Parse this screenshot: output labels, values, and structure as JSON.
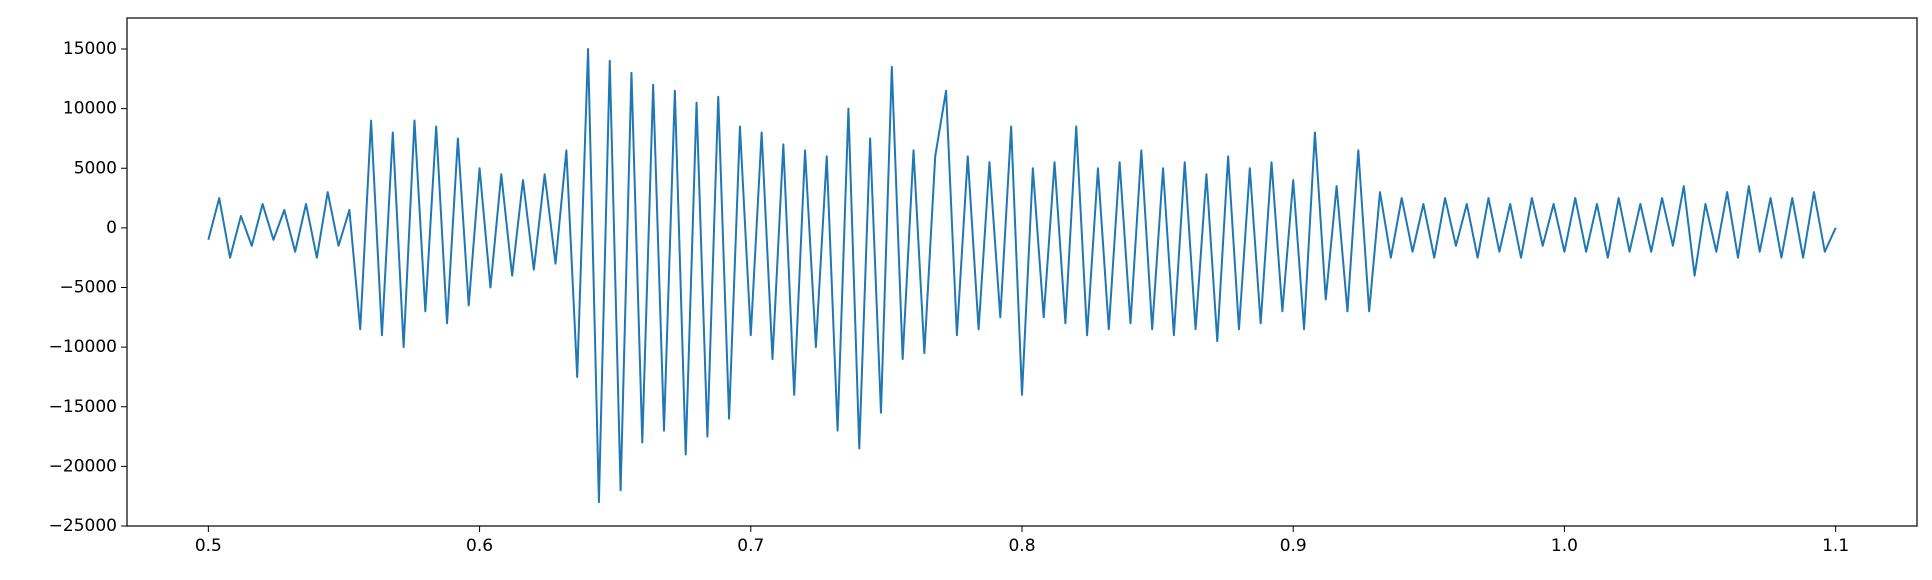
{
  "chart_data": {
    "type": "line",
    "x": [
      0.5,
      0.504,
      0.508,
      0.512,
      0.516,
      0.52,
      0.524,
      0.528,
      0.532,
      0.536,
      0.54,
      0.544,
      0.548,
      0.552,
      0.556,
      0.56,
      0.564,
      0.568,
      0.572,
      0.576,
      0.58,
      0.584,
      0.588,
      0.592,
      0.596,
      0.6,
      0.604,
      0.608,
      0.612,
      0.616,
      0.62,
      0.624,
      0.628,
      0.632,
      0.636,
      0.64,
      0.644,
      0.648,
      0.652,
      0.656,
      0.66,
      0.664,
      0.668,
      0.672,
      0.676,
      0.68,
      0.684,
      0.688,
      0.692,
      0.696,
      0.7,
      0.704,
      0.708,
      0.712,
      0.716,
      0.72,
      0.724,
      0.728,
      0.732,
      0.736,
      0.74,
      0.744,
      0.748,
      0.752,
      0.756,
      0.76,
      0.764,
      0.768,
      0.772,
      0.776,
      0.78,
      0.784,
      0.788,
      0.792,
      0.796,
      0.8,
      0.804,
      0.808,
      0.812,
      0.816,
      0.82,
      0.824,
      0.828,
      0.832,
      0.836,
      0.84,
      0.844,
      0.848,
      0.852,
      0.856,
      0.86,
      0.864,
      0.868,
      0.872,
      0.876,
      0.88,
      0.884,
      0.888,
      0.892,
      0.896,
      0.9,
      0.904,
      0.908,
      0.912,
      0.916,
      0.92,
      0.924,
      0.928,
      0.932,
      0.936,
      0.94,
      0.944,
      0.948,
      0.952,
      0.956,
      0.96,
      0.964,
      0.968,
      0.972,
      0.976,
      0.98,
      0.984,
      0.988,
      0.992,
      0.996,
      1.0,
      1.004,
      1.008,
      1.012,
      1.016,
      1.02,
      1.024,
      1.028,
      1.032,
      1.036,
      1.04,
      1.044,
      1.048,
      1.052,
      1.056,
      1.06,
      1.064,
      1.068,
      1.072,
      1.076,
      1.08,
      1.084,
      1.088,
      1.092,
      1.096,
      1.1
    ],
    "series": [
      {
        "color": "#1f77b4",
        "values": [
          -1000,
          2500,
          -2500,
          1000,
          -1500,
          2000,
          -1000,
          1500,
          -2000,
          2000,
          -2500,
          3000,
          -1500,
          1500,
          -8500,
          9000,
          -9000,
          8000,
          -10000,
          9000,
          -7000,
          8500,
          -8000,
          7500,
          -6500,
          5000,
          -5000,
          4500,
          -4000,
          4000,
          -3500,
          4500,
          -3000,
          6500,
          -12500,
          15000,
          -23000,
          14000,
          -22000,
          13000,
          -18000,
          12000,
          -17000,
          11500,
          -19000,
          10500,
          -17500,
          11000,
          -16000,
          8500,
          -9000,
          8000,
          -11000,
          7000,
          -14000,
          6500,
          -10000,
          6000,
          -17000,
          10000,
          -18500,
          7500,
          -15500,
          13500,
          -11000,
          6500,
          -10500,
          6000,
          11500,
          -9000,
          6000,
          -8500,
          5500,
          -7500,
          8500,
          -14000,
          5000,
          -7500,
          5500,
          -8000,
          8500,
          -9000,
          5000,
          -8500,
          5500,
          -8000,
          6500,
          -8500,
          5000,
          -9000,
          5500,
          -8500,
          4500,
          -9500,
          6000,
          -8500,
          5000,
          -8000,
          5500,
          -7000,
          4000,
          -8500,
          8000,
          -6000,
          3500,
          -7000,
          6500,
          -7000,
          3000,
          -2500,
          2500,
          -2000,
          2000,
          -2500,
          2500,
          -1500,
          2000,
          -2500,
          2500,
          -2000,
          2000,
          -2500,
          2500,
          -1500,
          2000,
          -2000,
          2500,
          -2000,
          2000,
          -2500,
          2500,
          -2000,
          2000,
          -2000,
          2500,
          -1500,
          3500,
          -4000,
          2000,
          -2000,
          3000,
          -2500,
          3500,
          -2000,
          2500,
          -2500,
          2500,
          -2500,
          3000,
          -2000,
          0
        ]
      }
    ],
    "xlim": [
      0.47,
      1.13
    ],
    "ylim": [
      -25000,
      17600
    ],
    "xticks": [
      0.5,
      0.6,
      0.7,
      0.8,
      0.9,
      {
        "value": 1,
        "label": "1.0"
      },
      1.1
    ],
    "yticks": [
      {
        "value": -25000,
        "label": "−25000"
      },
      {
        "value": -20000,
        "label": "−20000"
      },
      {
        "value": -15000,
        "label": "−15000"
      },
      {
        "value": -10000,
        "label": "−10000"
      },
      {
        "value": -5000,
        "label": "−5000"
      },
      0,
      5000,
      10000,
      15000
    ]
  }
}
